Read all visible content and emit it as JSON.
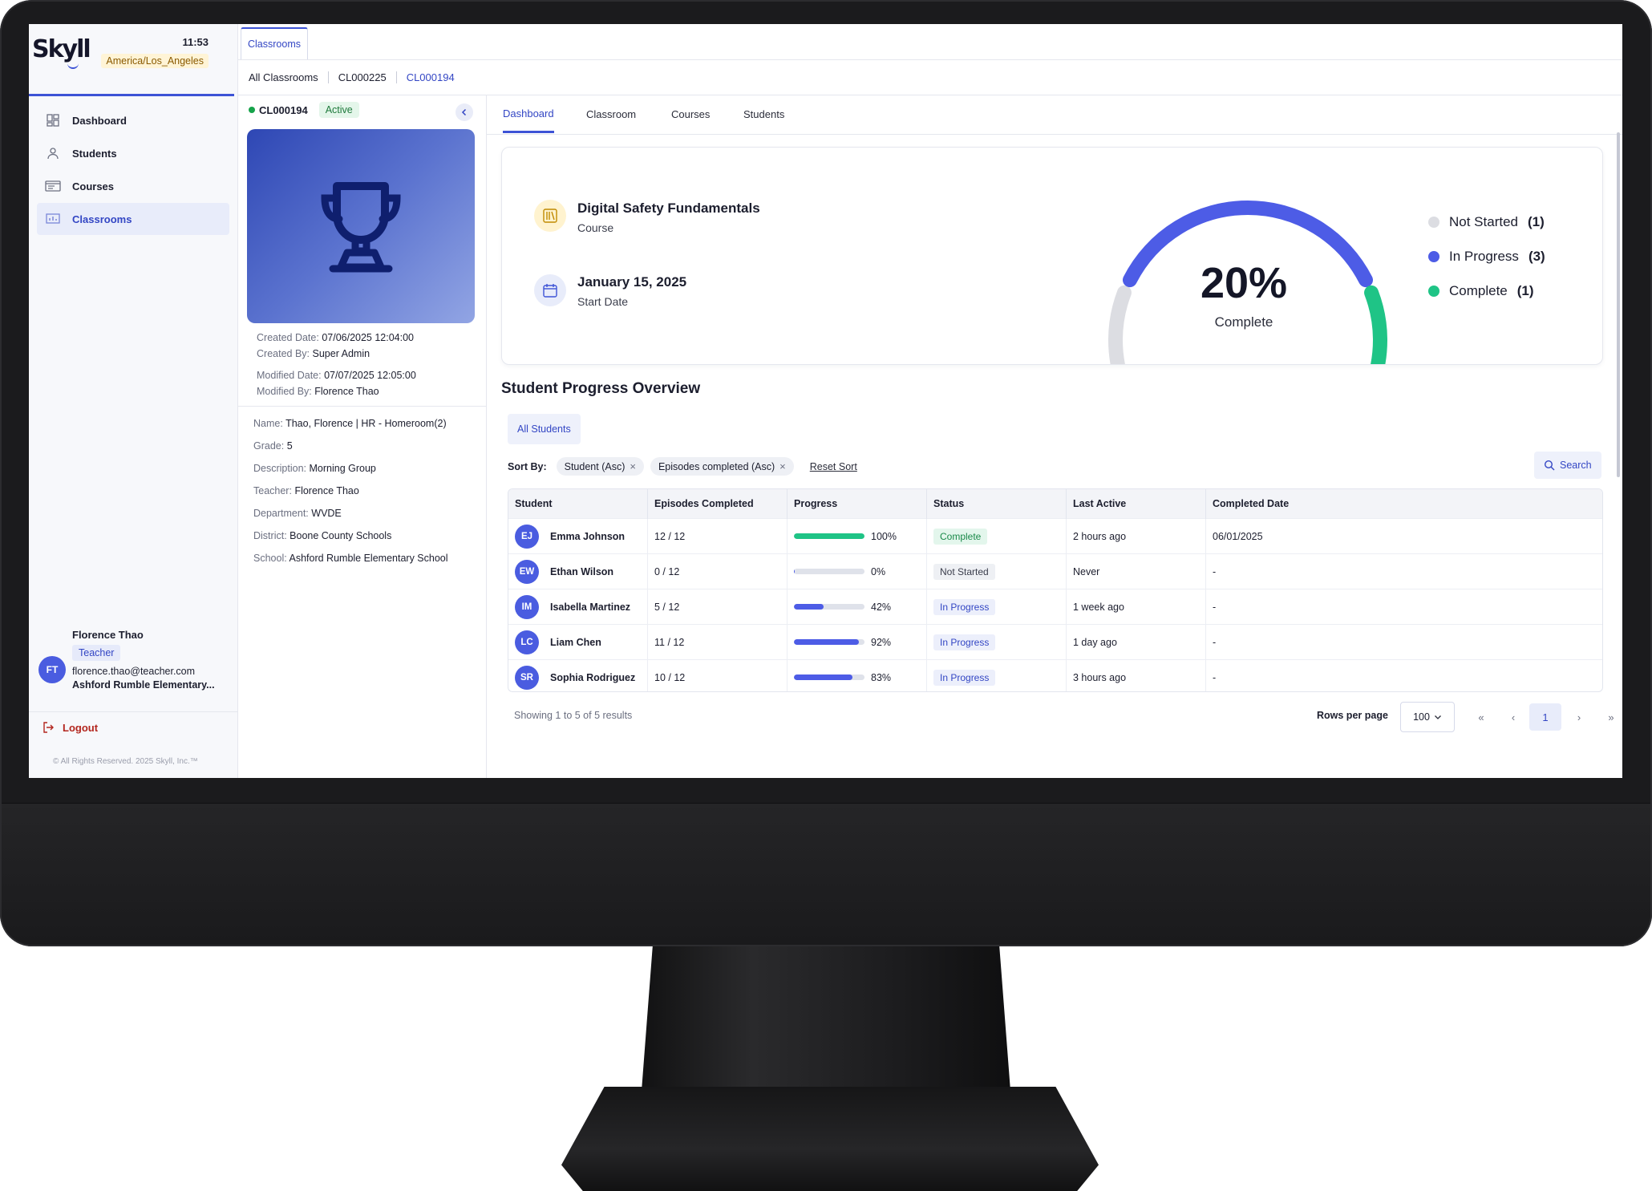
{
  "sidebar": {
    "logo": "Skyll",
    "time": "11:53",
    "timezone": "America/Los_Angeles",
    "nav": [
      {
        "label": "Dashboard",
        "icon": "dashboard-icon"
      },
      {
        "label": "Students",
        "icon": "person-icon"
      },
      {
        "label": "Courses",
        "icon": "courses-icon"
      },
      {
        "label": "Classrooms",
        "icon": "classroom-icon",
        "active": true
      }
    ],
    "user": {
      "initials": "FT",
      "name": "Florence Thao",
      "role": "Teacher",
      "email": "florence.thao@teacher.com",
      "school": "Ashford Rumble Elementary..."
    },
    "logout": "Logout",
    "copyright": "© All Rights Reserved. 2025 Skyll, Inc.™"
  },
  "topbar": {
    "tab": "Classrooms"
  },
  "breadcrumb": [
    "All Classrooms",
    "CL000225",
    "CL000194"
  ],
  "classroom": {
    "id": "CL000194",
    "status": "Active",
    "created_date_label": "Created Date:",
    "created_date": "07/06/2025 12:04:00",
    "created_by_label": "Created By:",
    "created_by": "Super Admin",
    "modified_date_label": "Modified Date:",
    "modified_date": "07/07/2025 12:05:00",
    "modified_by_label": "Modified By:",
    "modified_by": "Florence Thao",
    "details": [
      {
        "label": "Name:",
        "value": "Thao, Florence | HR - Homeroom(2)"
      },
      {
        "label": "Grade:",
        "value": "5"
      },
      {
        "label": "Description:",
        "value": "Morning Group"
      },
      {
        "label": "Teacher:",
        "value": "Florence Thao"
      },
      {
        "label": "Department:",
        "value": "WVDE"
      },
      {
        "label": "District:",
        "value": "Boone County Schools"
      },
      {
        "label": "School:",
        "value": "Ashford Rumble Elementary School"
      }
    ]
  },
  "tabs": [
    "Dashboard",
    "Classroom",
    "Courses",
    "Students"
  ],
  "summary": {
    "course_title": "Digital Safety Fundamentals",
    "course_sub": "Course",
    "start_date": "January 15, 2025",
    "start_sub": "Start Date",
    "percent": "20%",
    "percent_label": "Complete",
    "legend": [
      {
        "label": "Not Started",
        "count": "(1)",
        "color": "#dcdde2"
      },
      {
        "label": "In Progress",
        "count": "(3)",
        "color": "#4d5ce6"
      },
      {
        "label": "Complete",
        "count": "(1)",
        "color": "#1fc486"
      }
    ]
  },
  "overview": {
    "title": "Student Progress Overview",
    "filter": "All Students",
    "sort_label": "Sort By:",
    "sort_chips": [
      "Student (Asc)",
      "Episodes completed (Asc)"
    ],
    "reset_sort": "Reset Sort",
    "search": "Search",
    "columns": [
      "Student",
      "Episodes Completed",
      "Progress",
      "Status",
      "Last Active",
      "Completed Date"
    ],
    "rows": [
      {
        "initials": "EJ",
        "name": "Emma Johnson",
        "episodes": "12 / 12",
        "progress": 100,
        "progress_text": "100%",
        "status": "Complete",
        "last_active": "2 hours ago",
        "completed": "06/01/2025"
      },
      {
        "initials": "EW",
        "name": "Ethan Wilson",
        "episodes": "0 / 12",
        "progress": 0,
        "progress_text": "0%",
        "status": "Not Started",
        "last_active": "Never",
        "completed": "-"
      },
      {
        "initials": "IM",
        "name": "Isabella Martinez",
        "episodes": "5 / 12",
        "progress": 42,
        "progress_text": "42%",
        "status": "In Progress",
        "last_active": "1 week ago",
        "completed": "-"
      },
      {
        "initials": "LC",
        "name": "Liam Chen",
        "episodes": "11 / 12",
        "progress": 92,
        "progress_text": "92%",
        "status": "In Progress",
        "last_active": "1 day ago",
        "completed": "-"
      },
      {
        "initials": "SR",
        "name": "Sophia Rodriguez",
        "episodes": "10 / 12",
        "progress": 83,
        "progress_text": "83%",
        "status": "In Progress",
        "last_active": "3 hours ago",
        "completed": "-"
      }
    ],
    "showing": "Showing 1 to 5 of 5 results",
    "rows_per_page_label": "Rows per page",
    "rows_per_page": "100",
    "current_page": "1"
  },
  "colors": {
    "accent": "#3d53d6",
    "complete": "#1fc486",
    "in_progress": "#4d5ce6",
    "not_started": "#dcdde2"
  }
}
